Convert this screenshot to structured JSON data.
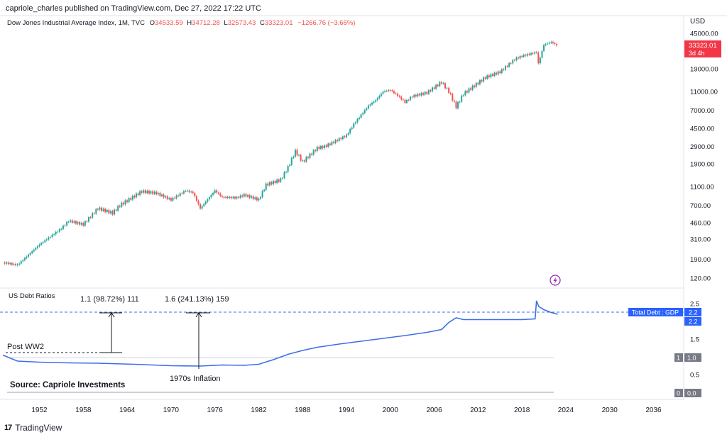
{
  "header": {
    "publisher": "capriole_charles published on TradingView.com, Dec 27, 2022 17:22 UTC",
    "symbol": "Dow Jones Industrial Average Index, 1M, TVC",
    "ohlc": {
      "o_label": "O",
      "o": "34533.59",
      "h_label": "H",
      "h": "34712.28",
      "l_label": "L",
      "l": "32573.43",
      "c_label": "C",
      "c": "33323.01",
      "change": "−1266.76 (−3.66%)"
    }
  },
  "price_axis": {
    "currency": "USD",
    "ticks": [
      "45000.00",
      "19000.00",
      "11000.00",
      "7000.00",
      "4500.00",
      "2900.00",
      "1900.00",
      "1100.00",
      "700.00",
      "460.00",
      "310.00",
      "190.00",
      "120.00"
    ],
    "last_price": "33323.01",
    "countdown": "3d 4h"
  },
  "lower_pane": {
    "title": "US Debt Ratios",
    "ticks": [
      "2.5",
      "2.2",
      "1.5",
      "1.0",
      "0.5",
      "0.0"
    ],
    "badge_label": "Total Debt : GDP",
    "badge_value": "2.2",
    "badge_value_2": "2.2",
    "marker_1": "1",
    "value_1": "1.0",
    "marker_0": "0",
    "value_0": "0.0"
  },
  "annotations": {
    "measure_1": "1.1 (98.72%) 111",
    "measure_2": "1.6 (241.13%) 159",
    "post_ww2": "Post WW2",
    "inflation": "1970s Inflation",
    "source": "Source: Capriole Investments"
  },
  "time_axis": [
    "1952",
    "1958",
    "1964",
    "1970",
    "1976",
    "1982",
    "1988",
    "1994",
    "2000",
    "2006",
    "2012",
    "2018",
    "2024",
    "2030",
    "2036"
  ],
  "footer": {
    "logo": "17",
    "brand": "TradingView"
  },
  "colors": {
    "up": "#26a69a",
    "down": "#ef5350",
    "ratio_line": "#3d6ee8",
    "badge_bg": "#2962ff",
    "last_price_bg": "#f23645"
  },
  "chart_data": [
    {
      "type": "line",
      "title": "Dow Jones Industrial Average Index, 1M, TVC",
      "yscale": "log",
      "x": [
        1947,
        1949,
        1952,
        1955,
        1956,
        1958,
        1960,
        1962,
        1963,
        1966,
        1968,
        1970,
        1972,
        1973,
        1974,
        1976,
        1977,
        1979,
        1980,
        1982,
        1983,
        1985,
        1986,
        1987,
        1988,
        1990,
        1991,
        1994,
        1995,
        1997,
        1998,
        1999,
        2000,
        2001,
        2002,
        2003,
        2005,
        2007,
        2008,
        2009,
        2010,
        2013,
        2015,
        2017,
        2018,
        2020,
        2020.2,
        2021,
        2022,
        2022.9
      ],
      "y": [
        175,
        165,
        270,
        400,
        480,
        440,
        650,
        580,
        700,
        980,
        940,
        800,
        1000,
        950,
        650,
        1000,
        850,
        840,
        900,
        800,
        1150,
        1300,
        1750,
        2600,
        2000,
        2800,
        2900,
        3800,
        5000,
        7800,
        8900,
        11000,
        11400,
        10000,
        8500,
        9800,
        10700,
        13800,
        11000,
        7600,
        10400,
        15500,
        17700,
        24000,
        26000,
        28500,
        21000,
        34000,
        36500,
        33323
      ]
    },
    {
      "type": "line",
      "title": "US Debt Ratios",
      "series": [
        {
          "name": "Total Debt : GDP",
          "x": [
            1947,
            1949,
            1952,
            1956,
            1960,
            1965,
            1970,
            1974,
            1977,
            1980,
            1982,
            1984,
            1986,
            1988,
            1990,
            1993,
            1996,
            1999,
            2002,
            2005,
            2007,
            2008,
            2009,
            2010,
            2014,
            2018,
            2019.8,
            2020,
            2020.3,
            2021,
            2022,
            2022.9
          ],
          "values": [
            1.05,
            0.88,
            0.85,
            0.83,
            0.82,
            0.79,
            0.75,
            0.74,
            0.77,
            0.76,
            0.79,
            0.92,
            1.07,
            1.18,
            1.27,
            1.36,
            1.44,
            1.52,
            1.6,
            1.69,
            1.77,
            1.97,
            2.1,
            2.05,
            2.05,
            2.05,
            2.07,
            2.58,
            2.42,
            2.33,
            2.25,
            2.2
          ]
        }
      ],
      "ylim": [
        0,
        2.5
      ]
    }
  ]
}
